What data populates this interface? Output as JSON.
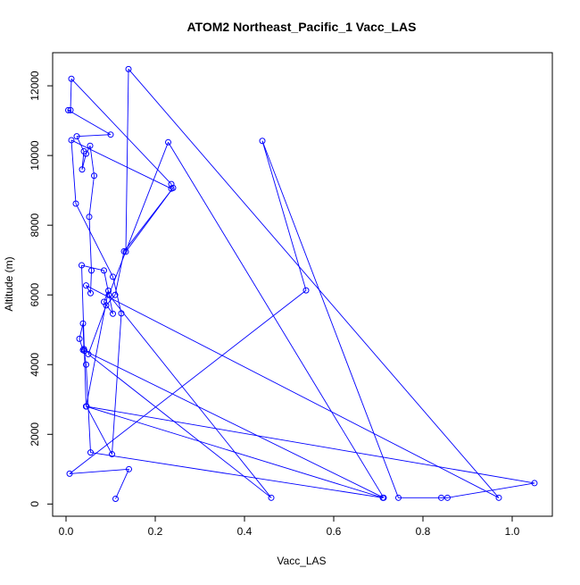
{
  "chart_data": {
    "type": "line",
    "title": "ATOM2 Northeast_Pacific_1 Vacc_LAS",
    "xlabel": "Vacc_LAS",
    "ylabel": "Altitude (m)",
    "xlim": [
      -0.03,
      1.09
    ],
    "ylim": [
      -350,
      12950
    ],
    "xticks": [
      0.0,
      0.2,
      0.4,
      0.6,
      0.8,
      1.0
    ],
    "xtick_labels": [
      "0.0",
      "0.2",
      "0.4",
      "0.6",
      "0.8",
      "1.0"
    ],
    "yticks": [
      0,
      2000,
      4000,
      6000,
      8000,
      10000,
      12000
    ],
    "ytick_labels": [
      "0",
      "2000",
      "4000",
      "6000",
      "8000",
      "10000",
      "12000"
    ],
    "series_color": "#0000ff",
    "legend": "none",
    "grid": false,
    "series": [
      {
        "x": [
          0.111,
          0.141,
          0.008,
          0.538,
          0.44,
          0.745,
          0.841,
          0.855,
          1.05,
          0.046,
          0.103,
          0.124,
          0.105,
          0.022,
          0.012,
          0.236,
          0.236,
          0.012,
          0.01,
          0.005,
          0.1,
          0.024,
          0.04,
          0.036,
          0.045,
          0.054,
          0.063,
          0.052,
          0.057,
          0.055,
          0.045,
          0.97,
          0.14,
          0.134,
          0.24,
          0.13,
          0.11,
          0.09,
          0.05,
          0.46,
          0.096,
          0.229,
          0.712,
          0.038,
          0.03,
          0.038,
          0.04,
          0.045,
          0.055,
          0.71,
          0.045,
          0.041,
          0.035,
          0.085,
          0.105,
          0.085,
          0.095,
          0.045
        ],
        "y": [
          150,
          1000,
          870,
          6130,
          10420,
          180,
          180,
          180,
          600,
          2800,
          1430,
          5470,
          6520,
          8620,
          10440,
          9050,
          9180,
          12200,
          11300,
          11300,
          10600,
          10550,
          10120,
          9600,
          10050,
          10280,
          9420,
          8240,
          6700,
          6050,
          6270,
          180,
          12480,
          7240,
          9070,
          7250,
          6000,
          5700,
          4300,
          180,
          6000,
          10380,
          180,
          4420,
          4740,
          5180,
          4450,
          4000,
          1480,
          180,
          2800,
          4400,
          6850,
          6700,
          5460,
          5800,
          6120,
          2800
        ]
      }
    ]
  }
}
